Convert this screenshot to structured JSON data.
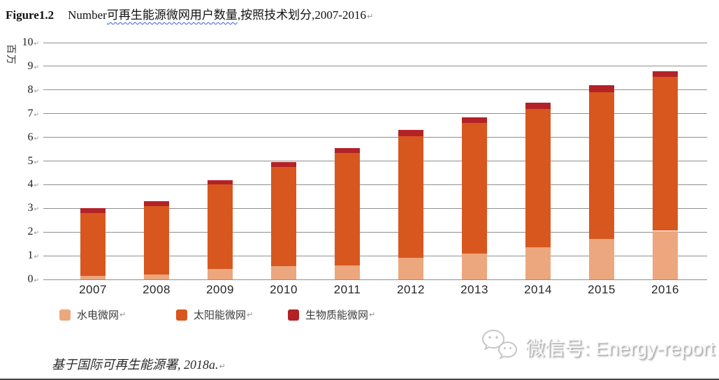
{
  "figure": {
    "label": "Figure1.2",
    "title_prefix": "Number",
    "title_underlined": "可再生能源微网用户数量",
    "title_suffix": ",按照技术划分,2007-2016",
    "return_mark": "↵"
  },
  "chart_data": {
    "type": "bar",
    "stacked": true,
    "title": "Number可再生能源微网用户数量,按照技术划分,2007-2016",
    "ylabel": "百万",
    "ylim": [
      0,
      10
    ],
    "ytick_interval": 1,
    "grid": true,
    "legend_position": "bottom",
    "categories": [
      "2007",
      "2008",
      "2009",
      "2010",
      "2011",
      "2012",
      "2013",
      "2014",
      "2015",
      "2016"
    ],
    "series": [
      {
        "key": "hydro",
        "name": "水电微网",
        "color": "#ECA77E",
        "values": [
          0.15,
          0.2,
          0.45,
          0.55,
          0.6,
          0.9,
          1.1,
          1.35,
          1.7,
          2.05
        ]
      },
      {
        "key": "solar",
        "name": "太阳能微网",
        "color": "#D8571E",
        "values": [
          2.65,
          2.9,
          3.55,
          4.2,
          4.75,
          5.15,
          5.5,
          5.85,
          6.2,
          6.5
        ]
      },
      {
        "key": "biomass",
        "name": "生物质能微网",
        "color": "#B22227",
        "values": [
          0.2,
          0.2,
          0.2,
          0.2,
          0.2,
          0.25,
          0.25,
          0.25,
          0.3,
          0.25
        ]
      }
    ],
    "totals": [
      3.0,
      3.3,
      4.2,
      4.95,
      5.55,
      6.3,
      6.85,
      7.45,
      8.2,
      8.8
    ],
    "tick_return_mark": "↵"
  },
  "legend": {
    "items": [
      {
        "label": "水电微网",
        "color": "#ECA77E"
      },
      {
        "label": "太阳能微网",
        "color": "#D8571E"
      },
      {
        "label": "生物质能微网",
        "color": "#B22227"
      }
    ],
    "return_mark": "↵"
  },
  "source": {
    "text": "基于国际可再生能源署, 2018a.",
    "return_mark": "↵"
  },
  "watermark": {
    "icon": "wechat-icon",
    "label": "微信号: Energy-report"
  }
}
